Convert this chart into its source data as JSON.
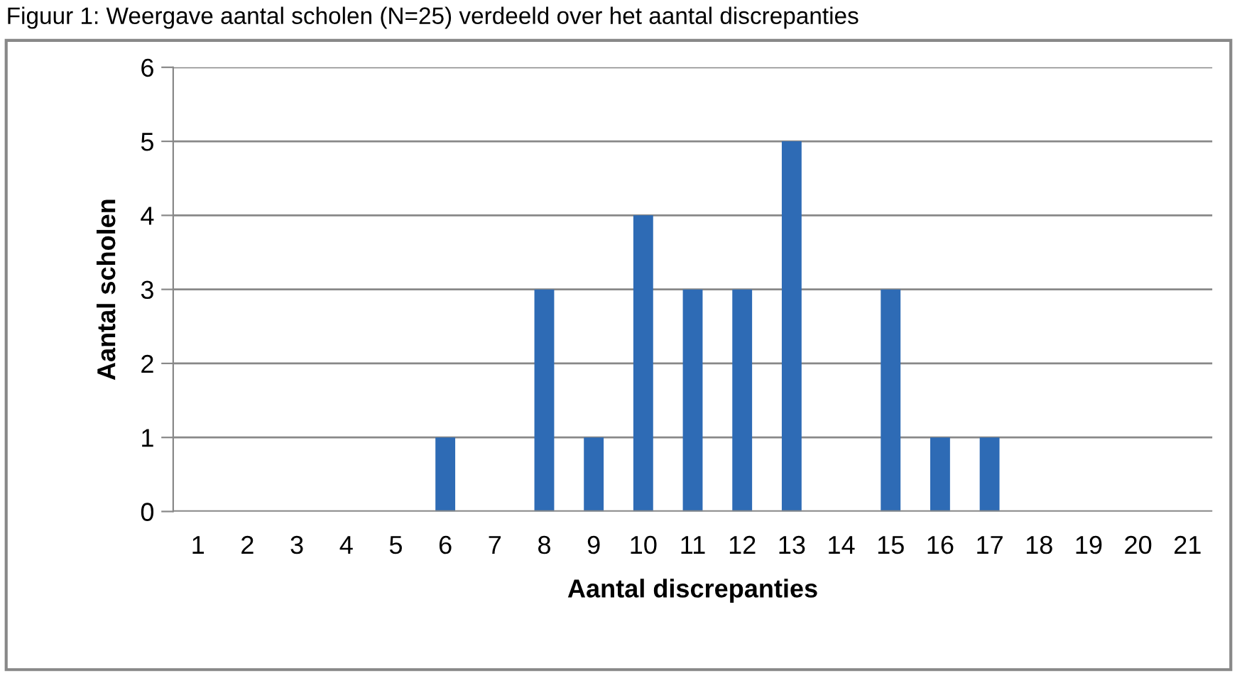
{
  "chart_data": {
    "type": "bar",
    "title": "Figuur 1: Weergave aantal scholen (N=25) verdeeld over het aantal discrepanties",
    "xlabel": "Aantal discrepanties",
    "ylabel": "Aantal scholen",
    "categories": [
      "1",
      "2",
      "3",
      "4",
      "5",
      "6",
      "7",
      "8",
      "9",
      "10",
      "11",
      "12",
      "13",
      "14",
      "15",
      "16",
      "17",
      "18",
      "19",
      "20",
      "21"
    ],
    "values": [
      0,
      0,
      0,
      0,
      0,
      1,
      0,
      3,
      1,
      4,
      3,
      3,
      5,
      0,
      3,
      1,
      1,
      0,
      0,
      0,
      0
    ],
    "color": "#2e6bb5",
    "ylim": [
      0,
      6
    ],
    "yticks": [
      0,
      1,
      2,
      3,
      4,
      5,
      6
    ],
    "grid": "y",
    "legend": false
  }
}
